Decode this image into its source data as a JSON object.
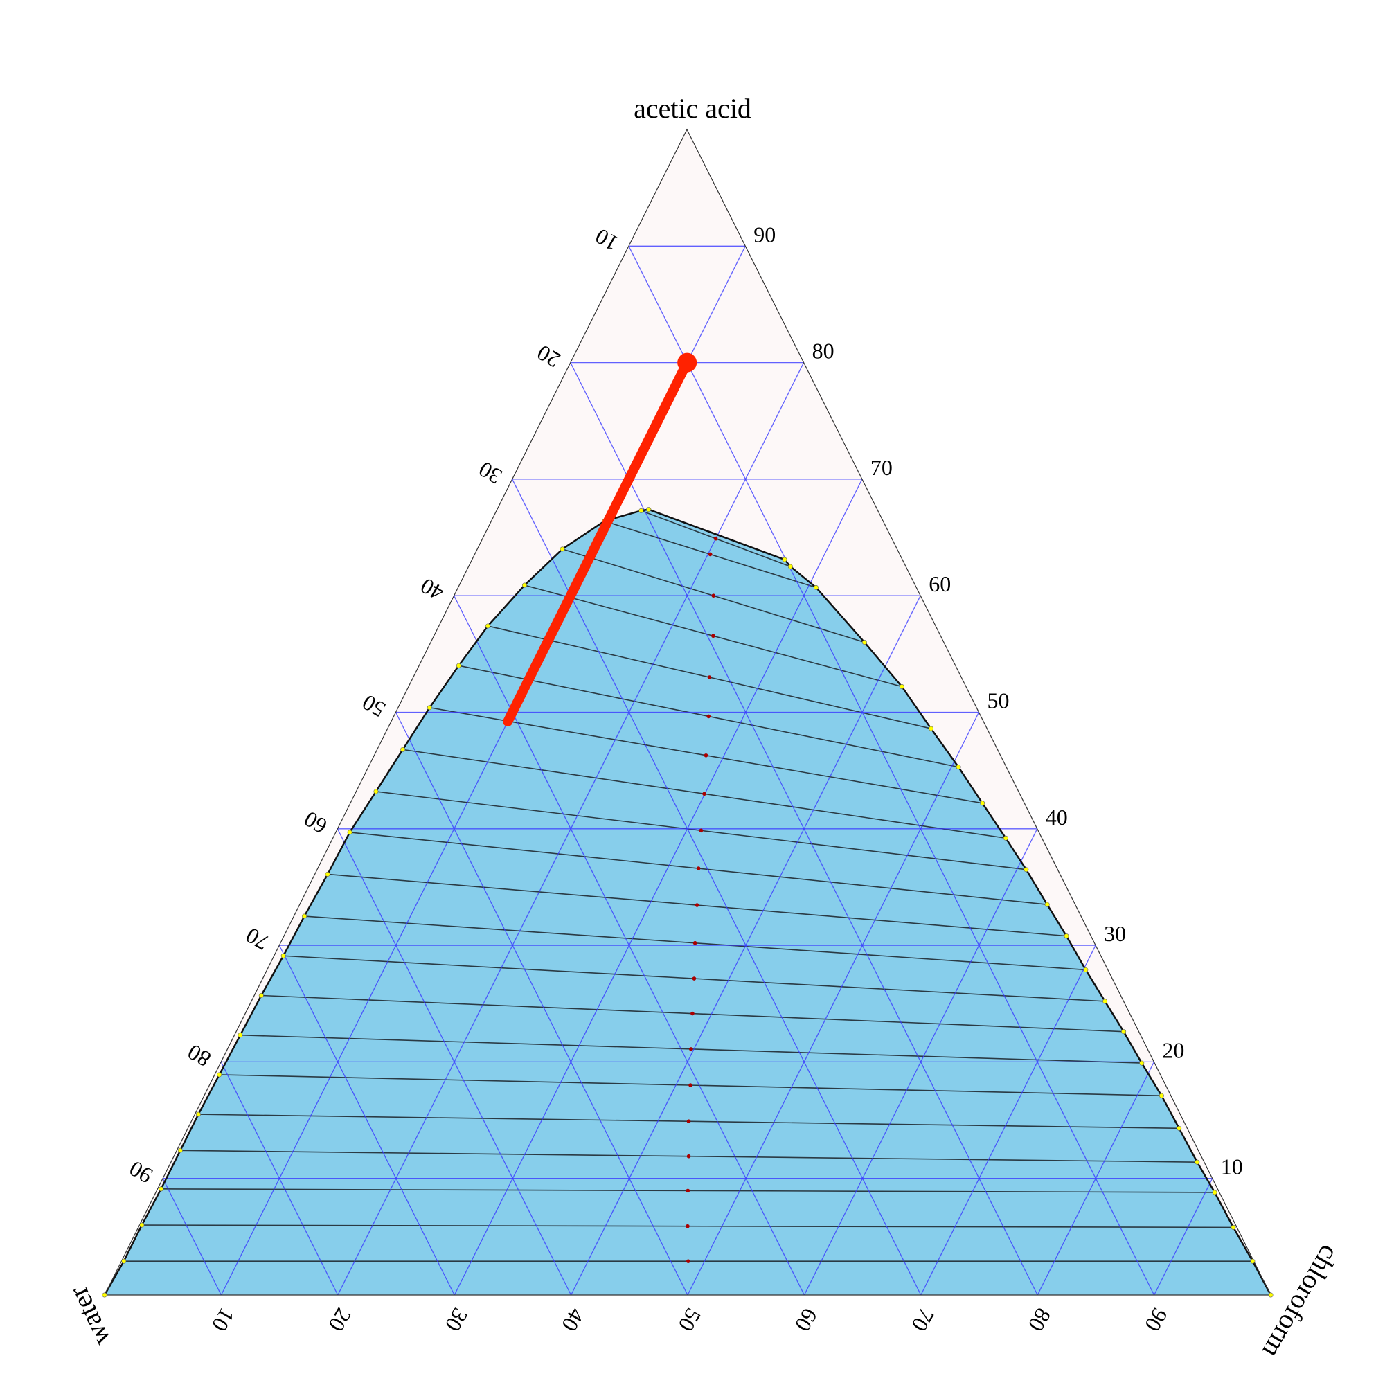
{
  "chart_data": {
    "type": "ternary",
    "axes": {
      "top": "acetic acid",
      "left": "water",
      "right": "chloroform"
    },
    "units": "percent",
    "ticks": [
      "10",
      "20",
      "30",
      "40",
      "50",
      "60",
      "70",
      "80",
      "90"
    ],
    "grid": true,
    "binodal_curve": [
      [
        0,
        0
      ],
      [
        2.9,
        0.2
      ],
      [
        6.0,
        0.2
      ],
      [
        9.1,
        0.3
      ],
      [
        12.4,
        0.3
      ],
      [
        15.5,
        0.3
      ],
      [
        18.9,
        0.4
      ],
      [
        22.3,
        0.5
      ],
      [
        25.7,
        0.6
      ],
      [
        29.1,
        0.8
      ],
      [
        32.5,
        0.9
      ],
      [
        36.1,
        1.1
      ],
      [
        39.7,
        1.2
      ],
      [
        43.2,
        1.7
      ],
      [
        46.8,
        2.2
      ],
      [
        50.4,
        2.7
      ],
      [
        54.0,
        3.4
      ],
      [
        57.4,
        4.2
      ],
      [
        60.9,
        5.6
      ],
      [
        64.0,
        7.3
      ],
      [
        66.4,
        9.7
      ],
      [
        67.3,
        12.4
      ],
      [
        67.4,
        13.0
      ],
      [
        63.1,
        26.8
      ],
      [
        62.5,
        27.6
      ],
      [
        60.7,
        30.7
      ],
      [
        56.0,
        37.2
      ],
      [
        52.2,
        42.3
      ],
      [
        48.6,
        46.6
      ],
      [
        45.3,
        50.6
      ],
      [
        42.2,
        54.2
      ],
      [
        39.2,
        57.7
      ],
      [
        36.5,
        60.8
      ],
      [
        33.5,
        64.1
      ],
      [
        30.8,
        67.1
      ],
      [
        27.9,
        70.2
      ],
      [
        25.2,
        73.2
      ],
      [
        22.6,
        76.1
      ],
      [
        19.9,
        79.0
      ],
      [
        17.1,
        82.1
      ],
      [
        14.3,
        85.0
      ],
      [
        11.4,
        88.0
      ],
      [
        8.8,
        90.8
      ],
      [
        5.8,
        93.9
      ],
      [
        2.9,
        97.0
      ],
      [
        0,
        100
      ]
    ],
    "point_format": "[acetic acid %, chloroform %]",
    "tie_lines": [
      [
        [
          2.9,
          0.2
        ],
        [
          2.9,
          97.0
        ]
      ],
      [
        [
          6.0,
          0.2
        ],
        [
          5.8,
          93.9
        ]
      ],
      [
        [
          9.1,
          0.3
        ],
        [
          8.8,
          90.8
        ]
      ],
      [
        [
          12.4,
          0.3
        ],
        [
          11.4,
          88.0
        ]
      ],
      [
        [
          15.5,
          0.3
        ],
        [
          14.3,
          85.0
        ]
      ],
      [
        [
          18.9,
          0.4
        ],
        [
          17.1,
          82.1
        ]
      ],
      [
        [
          22.3,
          0.5
        ],
        [
          19.9,
          79.0
        ]
      ],
      [
        [
          25.7,
          0.6
        ],
        [
          22.6,
          76.1
        ]
      ],
      [
        [
          29.1,
          0.8
        ],
        [
          25.2,
          73.2
        ]
      ],
      [
        [
          32.5,
          0.9
        ],
        [
          27.9,
          70.2
        ]
      ],
      [
        [
          36.1,
          1.1
        ],
        [
          30.8,
          67.1
        ]
      ],
      [
        [
          39.7,
          1.2
        ],
        [
          33.5,
          64.1
        ]
      ],
      [
        [
          43.2,
          1.7
        ],
        [
          36.5,
          60.8
        ]
      ],
      [
        [
          46.8,
          2.2
        ],
        [
          39.2,
          57.7
        ]
      ],
      [
        [
          50.4,
          2.7
        ],
        [
          42.2,
          54.2
        ]
      ],
      [
        [
          54.0,
          3.4
        ],
        [
          45.3,
          50.6
        ]
      ],
      [
        [
          57.4,
          4.2
        ],
        [
          48.6,
          46.6
        ]
      ],
      [
        [
          60.9,
          5.6
        ],
        [
          52.2,
          42.3
        ]
      ],
      [
        [
          64.0,
          7.3
        ],
        [
          56.0,
          37.2
        ]
      ],
      [
        [
          66.4,
          9.7
        ],
        [
          60.7,
          30.7
        ]
      ],
      [
        [
          67.3,
          12.4
        ],
        [
          62.5,
          27.6
        ]
      ]
    ],
    "highlight_segment": {
      "start": [
        80,
        10
      ],
      "end": [
        49.2,
        10
      ]
    },
    "colors": {
      "triangle_fill": "#fdf8f8",
      "two_phase_fill": "#87ceeb",
      "grid": "#3a3aff",
      "tie_line": "#2a3a44",
      "curve_points": "#ffff00",
      "tie_midpoints": "#aa0000",
      "highlight": "#ff2200"
    }
  }
}
